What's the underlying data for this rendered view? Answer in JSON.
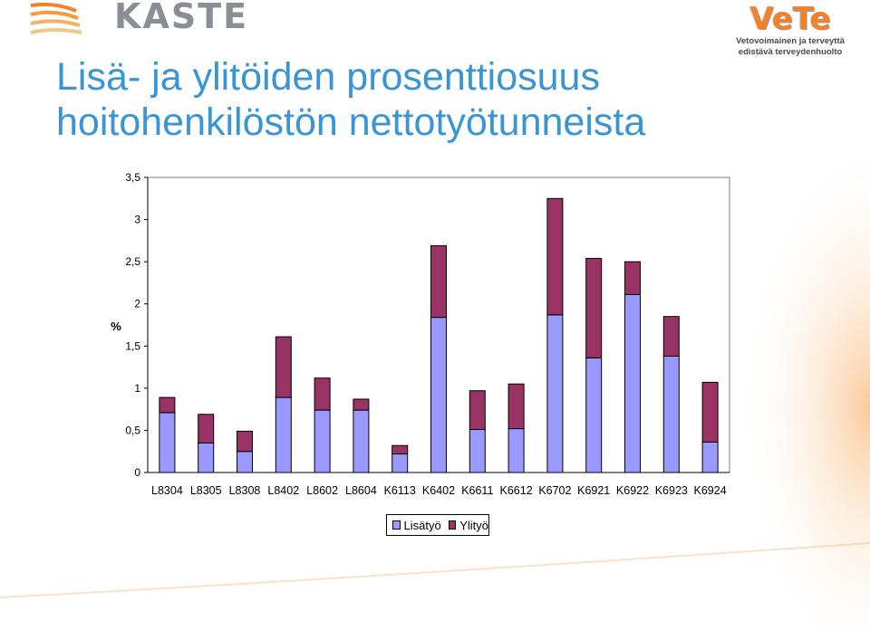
{
  "header": {
    "left_logo": "KASTE",
    "right_logo": "VeTe",
    "right_logo_tagline_1": "Vetovoimainen ja terveyttä",
    "right_logo_tagline_2": "edistävä terveydenhuolto"
  },
  "title": {
    "line1": "Lisä- ja ylitöiden prosenttiosuus",
    "line2": "hoitohenkilöstön nettotyötunneista"
  },
  "colors": {
    "title": "#3a95d4",
    "lisatyo": "#9999ff",
    "ylityo": "#993366",
    "orange": "#f3812a"
  },
  "chart_data": {
    "type": "bar",
    "stacked": true,
    "categories": [
      "L8304",
      "L8305",
      "L8308",
      "L8402",
      "L8602",
      "L8604",
      "K6113",
      "K6402",
      "K6611",
      "K6612",
      "K6702",
      "K6921",
      "K6922",
      "K6923",
      "K6924"
    ],
    "series": [
      {
        "name": "Lisätyö",
        "values": [
          0.71,
          0.35,
          0.25,
          0.89,
          0.74,
          0.74,
          0.22,
          1.84,
          0.51,
          0.52,
          1.87,
          1.36,
          2.11,
          1.38,
          0.36
        ]
      },
      {
        "name": "Ylityö",
        "values": [
          0.18,
          0.34,
          0.24,
          0.72,
          0.38,
          0.13,
          0.1,
          0.85,
          0.46,
          0.53,
          1.38,
          1.18,
          0.39,
          0.47,
          0.71
        ]
      }
    ],
    "ylabel": "%",
    "ylim": [
      0,
      3.5
    ],
    "yticks": [
      "0",
      "0,5",
      "1",
      "1,5",
      "2",
      "2,5",
      "3",
      "3,5"
    ],
    "grid": false,
    "legend_position": "bottom-center",
    "legend": [
      "Lisätyö",
      "Ylityö"
    ]
  }
}
